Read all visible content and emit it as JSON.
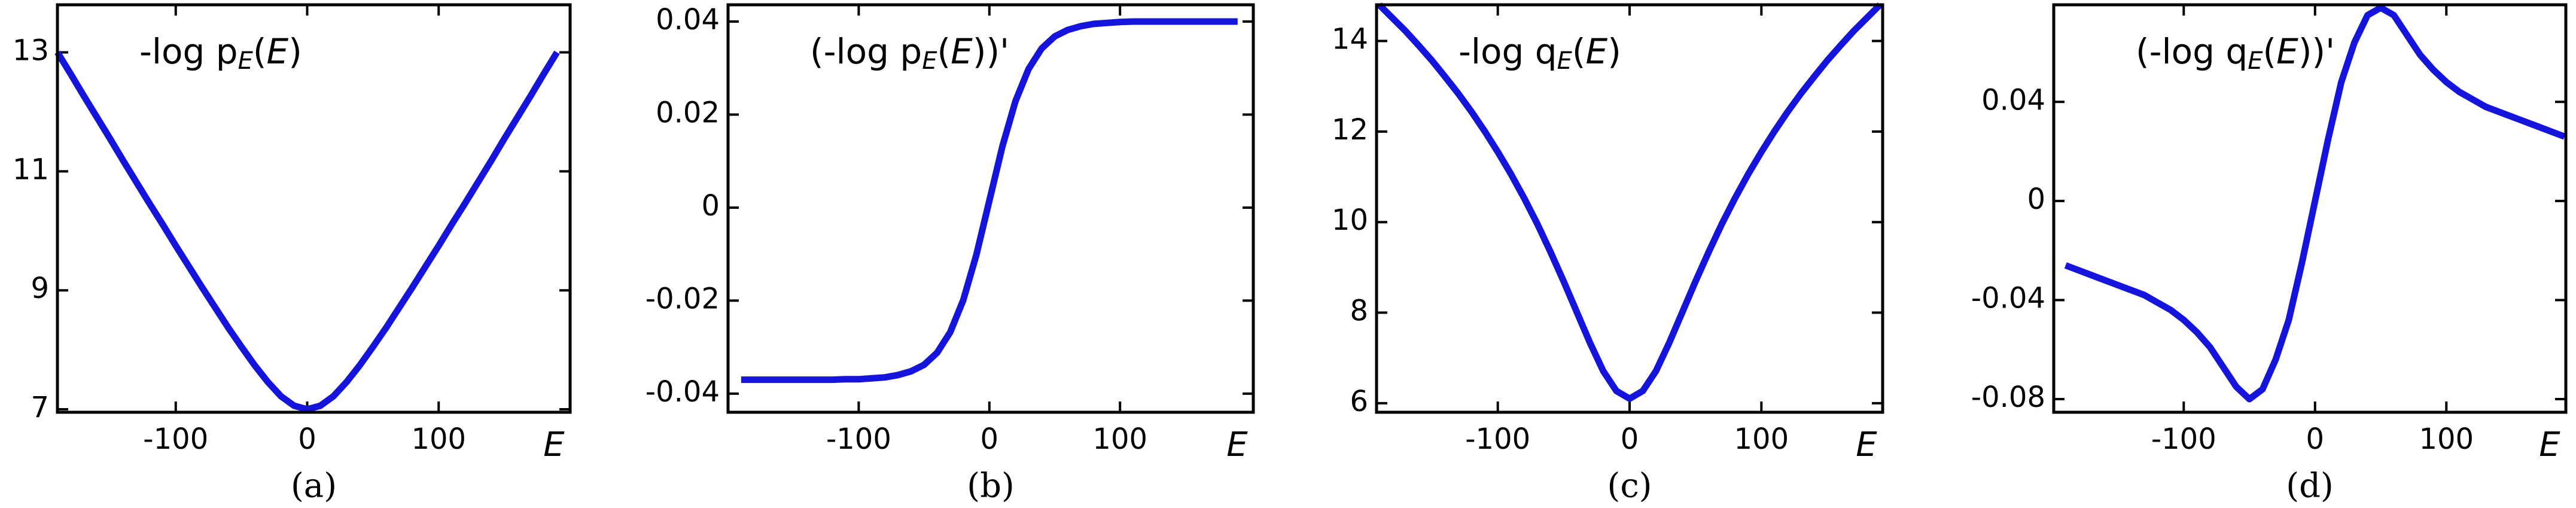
{
  "chart_data": [
    {
      "type": "line",
      "title": [
        "-log p",
        "E",
        "(",
        "E",
        ")"
      ],
      "xlabel": "E",
      "caption": "(a)",
      "x": [
        -190,
        -180,
        -170,
        -160,
        -150,
        -140,
        -130,
        -120,
        -110,
        -100,
        -90,
        -80,
        -70,
        -60,
        -50,
        -40,
        -30,
        -20,
        -10,
        0,
        10,
        20,
        30,
        40,
        50,
        60,
        70,
        80,
        90,
        100,
        110,
        120,
        130,
        140,
        150,
        160,
        170,
        180,
        190
      ],
      "values": [
        13,
        12.64,
        12.27,
        11.91,
        11.55,
        11.18,
        10.82,
        10.46,
        10.11,
        9.75,
        9.4,
        9.05,
        8.71,
        8.37,
        8.05,
        7.74,
        7.46,
        7.22,
        7.06,
        7,
        7.06,
        7.22,
        7.46,
        7.74,
        8.05,
        8.37,
        8.71,
        9.05,
        9.4,
        9.75,
        10.11,
        10.46,
        10.82,
        11.18,
        11.55,
        11.91,
        12.27,
        12.64,
        13
      ],
      "color": "#1414dc",
      "xlim": [
        -190,
        200
      ],
      "ylim": [
        6.95,
        13.8
      ],
      "xticks": [
        -100,
        0,
        100
      ],
      "yticks": [
        7,
        9,
        11,
        13
      ]
    },
    {
      "type": "line",
      "title": [
        "(-log p",
        "E",
        "(",
        "E",
        "))'"
      ],
      "xlabel": "E",
      "caption": "(b)",
      "x": [
        -190,
        -180,
        -170,
        -160,
        -150,
        -140,
        -130,
        -120,
        -110,
        -100,
        -90,
        -80,
        -70,
        -60,
        -50,
        -40,
        -30,
        -20,
        -10,
        0,
        10,
        20,
        30,
        40,
        50,
        60,
        70,
        80,
        90,
        100,
        110,
        120,
        130,
        140,
        150,
        160,
        170,
        180,
        190
      ],
      "values": [
        -0.037,
        -0.037,
        -0.037,
        -0.037,
        -0.037,
        -0.037,
        -0.037,
        -0.037,
        -0.0369,
        -0.0369,
        -0.0367,
        -0.0365,
        -0.036,
        -0.0352,
        -0.0338,
        -0.0312,
        -0.0268,
        -0.0199,
        -0.0102,
        0.0015,
        0.0132,
        0.0229,
        0.0298,
        0.0342,
        0.0368,
        0.0382,
        0.039,
        0.0395,
        0.0397,
        0.0399,
        0.04,
        0.04,
        0.04,
        0.04,
        0.04,
        0.04,
        0.04,
        0.04,
        0.04
      ],
      "color": "#1414dc",
      "xlim": [
        -200,
        202
      ],
      "ylim": [
        -0.044,
        0.0436
      ],
      "xticks": [
        -100,
        0,
        100
      ],
      "yticks": [
        -0.04,
        -0.02,
        0,
        0.02,
        0.04
      ]
    },
    {
      "type": "line",
      "title": [
        "-log q",
        "E",
        "(",
        "E",
        ")"
      ],
      "xlabel": "E",
      "caption": "(c)",
      "x": [
        -190,
        -180,
        -170,
        -160,
        -150,
        -140,
        -130,
        -120,
        -110,
        -100,
        -90,
        -80,
        -70,
        -60,
        -50,
        -40,
        -30,
        -20,
        -10,
        0,
        10,
        20,
        30,
        40,
        50,
        60,
        70,
        80,
        90,
        100,
        110,
        120,
        130,
        140,
        150,
        160,
        170,
        180,
        190
      ],
      "values": [
        14.8,
        14.51,
        14.22,
        13.9,
        13.57,
        13.21,
        12.84,
        12.44,
        12.01,
        11.55,
        11.06,
        10.53,
        9.96,
        9.34,
        8.69,
        8.01,
        7.33,
        6.71,
        6.27,
        6.1,
        6.27,
        6.71,
        7.33,
        8.01,
        8.69,
        9.34,
        9.96,
        10.53,
        11.06,
        11.55,
        12.01,
        12.44,
        12.84,
        13.21,
        13.57,
        13.9,
        14.22,
        14.51,
        14.8
      ],
      "color": "#1414dc",
      "xlim": [
        -192,
        192
      ],
      "ylim": [
        5.8,
        14.8
      ],
      "xticks": [
        -100,
        0,
        100
      ],
      "yticks": [
        6,
        8,
        10,
        12,
        14
      ]
    },
    {
      "type": "line",
      "title": [
        "(-log q",
        "E",
        "(",
        "E",
        "))'"
      ],
      "xlabel": "E",
      "caption": "(d)",
      "x": [
        -190,
        -180,
        -170,
        -160,
        -150,
        -140,
        -130,
        -120,
        -110,
        -100,
        -90,
        -80,
        -70,
        -60,
        -50,
        -40,
        -30,
        -20,
        -10,
        0,
        10,
        20,
        30,
        40,
        50,
        60,
        70,
        80,
        90,
        100,
        110,
        120,
        130,
        140,
        150,
        160,
        170,
        180,
        190
      ],
      "values": [
        -0.026,
        -0.028,
        -0.03,
        -0.032,
        -0.034,
        -0.036,
        -0.038,
        -0.041,
        -0.044,
        -0.048,
        -0.053,
        -0.059,
        -0.067,
        -0.075,
        -0.08,
        -0.076,
        -0.064,
        -0.048,
        -0.025,
        0,
        0.025,
        0.048,
        0.064,
        0.075,
        0.078,
        0.075,
        0.067,
        0.059,
        0.053,
        0.048,
        0.044,
        0.041,
        0.038,
        0.036,
        0.034,
        0.032,
        0.03,
        0.028,
        0.026
      ],
      "color": "#1414dc",
      "xlim": [
        -199,
        191
      ],
      "ylim": [
        -0.0853,
        0.0792
      ],
      "xticks": [
        -100,
        0,
        100
      ],
      "yticks": [
        -0.08,
        -0.04,
        0,
        0.04
      ]
    }
  ]
}
